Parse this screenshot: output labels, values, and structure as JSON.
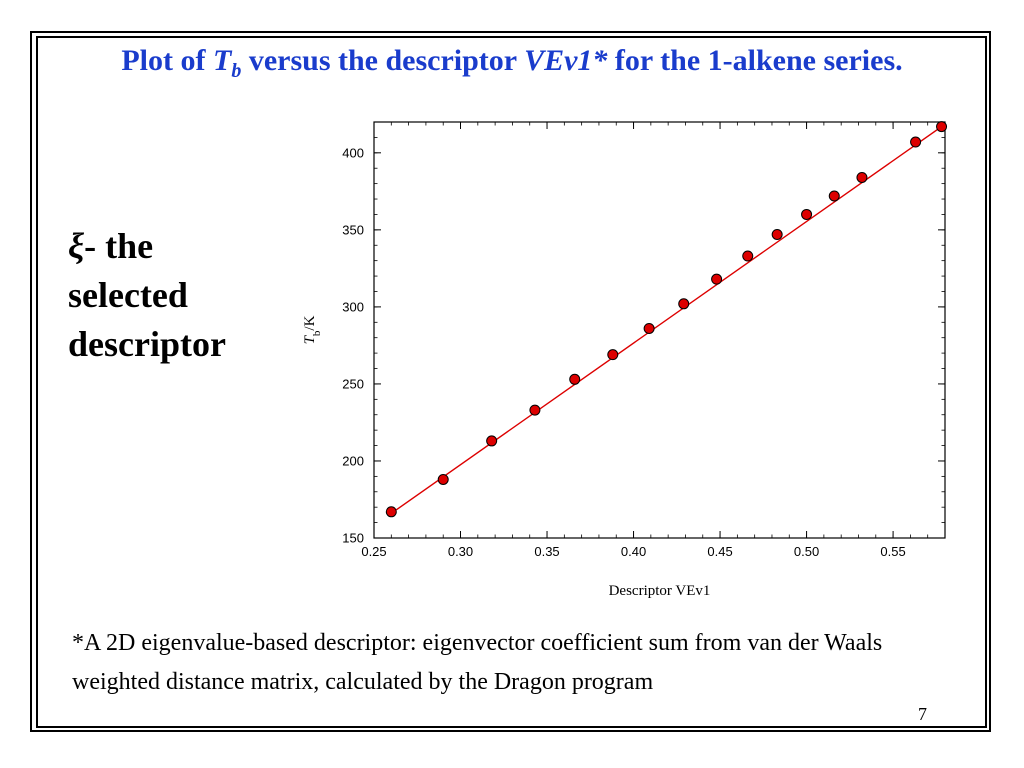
{
  "slide": {
    "title_parts": {
      "a": "Plot of ",
      "b": "T",
      "c": "b",
      "d": " versus the descriptor ",
      "e": "VEv1*",
      "f": " for the 1-alkene series."
    },
    "side_text": {
      "symbol": "ξ",
      "line1": "- the",
      "line2": "selected",
      "line3": "descriptor"
    },
    "footnote": "*A 2D eigenvalue-based descriptor: eigenvector coefficient sum from van der Waals weighted distance matrix, calculated by the Dragon program",
    "page_number": "7"
  },
  "colors": {
    "title": "#1a3ccc",
    "marker_fill": "#dd0000",
    "line": "#dd0000"
  },
  "chart_data": {
    "type": "scatter",
    "xlabel": "Descriptor VEv1",
    "ylabel_main": "T",
    "ylabel_sub": "b",
    "ylabel_unit": "/K",
    "xlim": [
      0.25,
      0.58
    ],
    "ylim": [
      150,
      420
    ],
    "xticks": [
      0.25,
      0.3,
      0.35,
      0.4,
      0.45,
      0.5,
      0.55
    ],
    "xtick_labels": [
      "0.25",
      "0.30",
      "0.35",
      "0.40",
      "0.45",
      "0.50",
      "0.55"
    ],
    "yticks": [
      150,
      200,
      250,
      300,
      350,
      400
    ],
    "ytick_labels": [
      "150",
      "200",
      "250",
      "300",
      "350",
      "400"
    ],
    "points": [
      [
        0.26,
        167
      ],
      [
        0.29,
        188
      ],
      [
        0.318,
        213
      ],
      [
        0.343,
        233
      ],
      [
        0.366,
        253
      ],
      [
        0.388,
        269
      ],
      [
        0.409,
        286
      ],
      [
        0.429,
        302
      ],
      [
        0.448,
        318
      ],
      [
        0.466,
        333
      ],
      [
        0.483,
        347
      ],
      [
        0.5,
        360
      ],
      [
        0.516,
        372
      ],
      [
        0.532,
        384
      ],
      [
        0.563,
        407
      ],
      [
        0.578,
        417
      ]
    ],
    "fit_line": [
      [
        0.26,
        166
      ],
      [
        0.578,
        417
      ]
    ],
    "grid": false
  }
}
